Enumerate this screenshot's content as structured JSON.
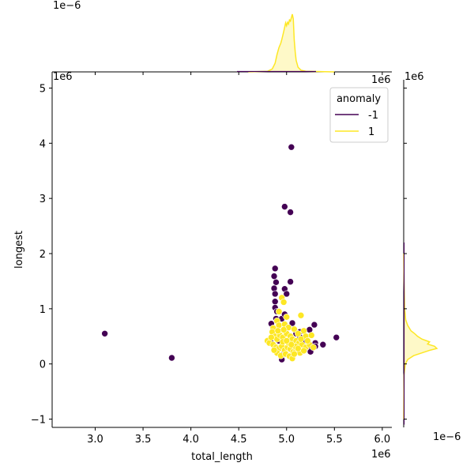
{
  "chart_data": {
    "type": "scatter",
    "kind": "jointplot",
    "xlabel": "total_length",
    "ylabel": "longest",
    "x_offset_label": "1e6",
    "y_offset_label": "1e6",
    "top_marginal_offset_label": "1e−6",
    "right_marginal_offset_label": "1e−6",
    "xlim": [
      2.55,
      6.1
    ],
    "ylim": [
      -1.15,
      5.15
    ],
    "x_ticks": [
      3.0,
      3.5,
      4.0,
      4.5,
      5.0,
      5.5,
      6.0
    ],
    "x_tick_labels": [
      "3.0",
      "3.5",
      "4.0",
      "4.5",
      "5.0",
      "5.5",
      "6.0"
    ],
    "y_ticks": [
      -1,
      0,
      1,
      2,
      3,
      4,
      5
    ],
    "y_tick_labels": [
      "−1",
      "0",
      "1",
      "2",
      "3",
      "4",
      "5"
    ],
    "grid": false,
    "legend": {
      "title": "anomaly",
      "placement": "top-right",
      "entries": [
        {
          "label": "-1",
          "color": "#440154"
        },
        {
          "label": "1",
          "color": "#fde725"
        }
      ]
    },
    "series": [
      {
        "name": "-1",
        "color": "#440154",
        "points": [
          [
            3.1,
            0.55
          ],
          [
            3.8,
            0.11
          ],
          [
            5.05,
            3.93
          ],
          [
            4.98,
            2.85
          ],
          [
            5.04,
            2.75
          ],
          [
            4.88,
            1.73
          ],
          [
            4.87,
            1.59
          ],
          [
            4.89,
            1.48
          ],
          [
            5.04,
            1.49
          ],
          [
            4.87,
            1.37
          ],
          [
            4.98,
            1.36
          ],
          [
            4.88,
            1.27
          ],
          [
            5.0,
            1.27
          ],
          [
            4.88,
            1.13
          ],
          [
            4.88,
            1.02
          ],
          [
            4.9,
            0.95
          ],
          [
            4.89,
            0.82
          ],
          [
            4.95,
            0.82
          ],
          [
            4.98,
            0.9
          ],
          [
            4.84,
            0.73
          ],
          [
            5.06,
            0.74
          ],
          [
            5.29,
            0.71
          ],
          [
            5.24,
            0.62
          ],
          [
            5.52,
            0.48
          ],
          [
            5.38,
            0.35
          ],
          [
            5.14,
            0.58
          ],
          [
            5.14,
            0.48
          ],
          [
            5.3,
            0.38
          ],
          [
            5.22,
            0.28
          ],
          [
            5.25,
            0.22
          ],
          [
            5.3,
            0.32
          ],
          [
            4.95,
            0.08
          ],
          [
            5.05,
            0.12
          ],
          [
            4.88,
            0.55
          ],
          [
            4.92,
            0.42
          ],
          [
            5.0,
            0.65
          ],
          [
            5.18,
            0.42
          ],
          [
            4.97,
            0.18
          ],
          [
            5.1,
            0.55
          ],
          [
            4.83,
            0.42
          ]
        ]
      },
      {
        "name": "1",
        "color": "#fde725",
        "points": [
          [
            4.95,
            1.2
          ],
          [
            4.97,
            1.12
          ],
          [
            4.92,
            0.95
          ],
          [
            5.0,
            0.85
          ],
          [
            4.9,
            0.78
          ],
          [
            5.15,
            0.88
          ],
          [
            4.86,
            0.65
          ],
          [
            4.92,
            0.7
          ],
          [
            4.98,
            0.72
          ],
          [
            5.02,
            0.66
          ],
          [
            5.08,
            0.63
          ],
          [
            5.12,
            0.55
          ],
          [
            5.18,
            0.6
          ],
          [
            5.2,
            0.5
          ],
          [
            5.26,
            0.52
          ],
          [
            4.85,
            0.58
          ],
          [
            4.88,
            0.5
          ],
          [
            4.9,
            0.45
          ],
          [
            4.93,
            0.52
          ],
          [
            4.96,
            0.48
          ],
          [
            5.0,
            0.55
          ],
          [
            5.04,
            0.5
          ],
          [
            5.06,
            0.45
          ],
          [
            5.1,
            0.42
          ],
          [
            5.13,
            0.38
          ],
          [
            5.16,
            0.35
          ],
          [
            5.2,
            0.3
          ],
          [
            5.24,
            0.35
          ],
          [
            5.28,
            0.3
          ],
          [
            4.8,
            0.42
          ],
          [
            4.82,
            0.38
          ],
          [
            4.86,
            0.35
          ],
          [
            4.89,
            0.3
          ],
          [
            4.92,
            0.28
          ],
          [
            4.95,
            0.32
          ],
          [
            4.98,
            0.25
          ],
          [
            5.01,
            0.3
          ],
          [
            5.04,
            0.27
          ],
          [
            5.07,
            0.22
          ],
          [
            5.1,
            0.25
          ],
          [
            5.14,
            0.2
          ],
          [
            5.18,
            0.24
          ],
          [
            4.9,
            0.2
          ],
          [
            4.94,
            0.15
          ],
          [
            4.99,
            0.18
          ],
          [
            5.03,
            0.14
          ],
          [
            5.06,
            0.1
          ],
          [
            4.87,
            0.25
          ],
          [
            4.96,
            0.4
          ],
          [
            5.02,
            0.38
          ],
          [
            5.09,
            0.32
          ],
          [
            5.12,
            0.28
          ],
          [
            5.22,
            0.42
          ],
          [
            4.91,
            0.6
          ],
          [
            5.0,
            0.42
          ],
          [
            5.05,
            0.35
          ],
          [
            4.97,
            0.62
          ],
          [
            5.15,
            0.45
          ],
          [
            4.84,
            0.48
          ],
          [
            5.08,
            0.18
          ]
        ]
      }
    ],
    "top_marginal": {
      "x": [
        4.6,
        4.8,
        4.85,
        4.88,
        4.9,
        4.92,
        4.94,
        4.95,
        4.97,
        4.99,
        5.0,
        5.01,
        5.02,
        5.03,
        5.04,
        5.05,
        5.06,
        5.07,
        5.08,
        5.09,
        5.1,
        5.12,
        5.15,
        5.2,
        5.5
      ],
      "density": [
        0,
        0.01,
        0.05,
        0.15,
        0.3,
        0.42,
        0.5,
        0.56,
        0.7,
        0.85,
        0.8,
        0.86,
        0.83,
        0.9,
        0.88,
        0.94,
        1.0,
        0.92,
        0.55,
        0.35,
        0.2,
        0.08,
        0.03,
        0.01,
        0
      ]
    },
    "right_marginal": {
      "y": [
        -1.0,
        -0.2,
        0.0,
        0.08,
        0.15,
        0.2,
        0.25,
        0.28,
        0.32,
        0.36,
        0.4,
        0.45,
        0.5,
        0.55,
        0.6,
        0.7,
        0.8,
        1.0,
        1.5,
        2.0
      ],
      "density": [
        0,
        0.01,
        0.05,
        0.12,
        0.3,
        0.55,
        0.8,
        1.0,
        0.93,
        0.72,
        0.78,
        0.55,
        0.42,
        0.33,
        0.22,
        0.12,
        0.06,
        0.03,
        0.01,
        0
      ]
    }
  }
}
